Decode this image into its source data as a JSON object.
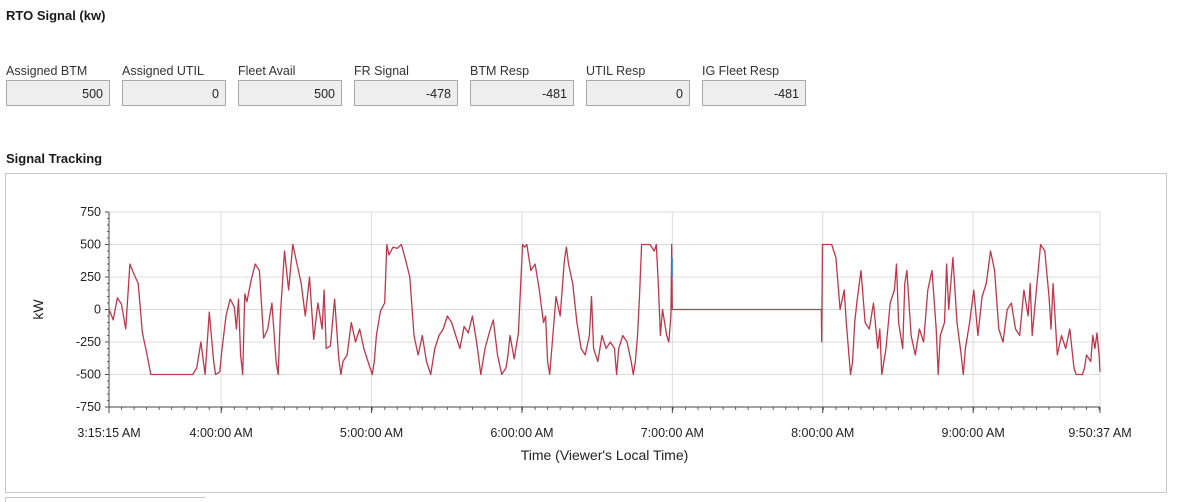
{
  "header": {
    "title": "RTO Signal (kw)"
  },
  "fields": [
    {
      "label": "Assigned BTM",
      "value": "500"
    },
    {
      "label": "Assigned UTIL",
      "value": "0"
    },
    {
      "label": "Fleet Avail",
      "value": "500"
    },
    {
      "label": "FR Signal",
      "value": "-478"
    },
    {
      "label": "BTM Resp",
      "value": "-481"
    },
    {
      "label": "UTIL Resp",
      "value": "0"
    },
    {
      "label": "IG Fleet Resp",
      "value": "-481"
    }
  ],
  "tracking": {
    "title": "Signal Tracking"
  },
  "chart_data": {
    "type": "line",
    "title": "",
    "xlabel": "Time (Viewer's Local Time)",
    "ylabel": "kW",
    "x_tick_labels": [
      "3:15:15 AM",
      "4:00:00 AM",
      "5:00:00 AM",
      "6:00:00 AM",
      "7:00:00 AM",
      "8:00:00 AM",
      "9:00:00 AM",
      "9:50:37 AM"
    ],
    "x_ticks_seconds": [
      0,
      2685,
      6285,
      9885,
      13485,
      17085,
      20685,
      23722
    ],
    "y_ticks": [
      -750,
      -500,
      -250,
      0,
      250,
      500,
      750
    ],
    "ylim": [
      -750,
      750
    ],
    "grid": true,
    "colors": {
      "line": "#c0364a",
      "blip": "#4f8fd6"
    },
    "series": [
      {
        "values": [
          [
            0,
            0
          ],
          [
            100,
            -80
          ],
          [
            200,
            90
          ],
          [
            300,
            40
          ],
          [
            400,
            -150
          ],
          [
            500,
            350
          ],
          [
            600,
            270
          ],
          [
            700,
            200
          ],
          [
            800,
            -180
          ],
          [
            900,
            -330
          ],
          [
            1000,
            -500
          ],
          [
            1150,
            -500
          ],
          [
            1300,
            -500
          ],
          [
            1450,
            -500
          ],
          [
            1600,
            -500
          ],
          [
            1700,
            -500
          ],
          [
            1800,
            -500
          ],
          [
            1900,
            -500
          ],
          [
            2000,
            -500
          ],
          [
            2100,
            -450
          ],
          [
            2200,
            -250
          ],
          [
            2300,
            -500
          ],
          [
            2400,
            -20
          ],
          [
            2500,
            -380
          ],
          [
            2550,
            -500
          ],
          [
            2650,
            -480
          ],
          [
            2700,
            -320
          ],
          [
            2800,
            -50
          ],
          [
            2900,
            80
          ],
          [
            3000,
            20
          ],
          [
            3050,
            -150
          ],
          [
            3100,
            80
          ],
          [
            3150,
            -350
          ],
          [
            3200,
            -500
          ],
          [
            3250,
            120
          ],
          [
            3300,
            60
          ],
          [
            3400,
            220
          ],
          [
            3500,
            350
          ],
          [
            3600,
            300
          ],
          [
            3700,
            -220
          ],
          [
            3800,
            -150
          ],
          [
            3900,
            50
          ],
          [
            4000,
            -400
          ],
          [
            4050,
            -500
          ],
          [
            4100,
            -50
          ],
          [
            4150,
            200
          ],
          [
            4200,
            450
          ],
          [
            4300,
            150
          ],
          [
            4400,
            500
          ],
          [
            4500,
            350
          ],
          [
            4600,
            200
          ],
          [
            4700,
            -50
          ],
          [
            4800,
            250
          ],
          [
            4900,
            -230
          ],
          [
            5000,
            50
          ],
          [
            5100,
            -150
          ],
          [
            5150,
            150
          ],
          [
            5200,
            -300
          ],
          [
            5300,
            -280
          ],
          [
            5400,
            80
          ],
          [
            5500,
            -380
          ],
          [
            5550,
            -500
          ],
          [
            5600,
            -400
          ],
          [
            5700,
            -350
          ],
          [
            5800,
            -100
          ],
          [
            5900,
            -250
          ],
          [
            6000,
            -150
          ],
          [
            6100,
            -300
          ],
          [
            6200,
            -400
          ],
          [
            6300,
            -500
          ],
          [
            6350,
            -400
          ],
          [
            6400,
            -200
          ],
          [
            6500,
            -10
          ],
          [
            6600,
            50
          ],
          [
            6650,
            500
          ],
          [
            6700,
            420
          ],
          [
            6800,
            480
          ],
          [
            6900,
            470
          ],
          [
            7000,
            500
          ],
          [
            7100,
            380
          ],
          [
            7200,
            250
          ],
          [
            7300,
            -200
          ],
          [
            7400,
            -350
          ],
          [
            7500,
            -200
          ],
          [
            7600,
            -400
          ],
          [
            7700,
            -500
          ],
          [
            7800,
            -300
          ],
          [
            7900,
            -200
          ],
          [
            8000,
            -150
          ],
          [
            8100,
            -50
          ],
          [
            8200,
            -100
          ],
          [
            8300,
            -200
          ],
          [
            8400,
            -300
          ],
          [
            8500,
            -130
          ],
          [
            8600,
            -180
          ],
          [
            8700,
            -50
          ],
          [
            8800,
            -250
          ],
          [
            8900,
            -500
          ],
          [
            9000,
            -300
          ],
          [
            9100,
            -180
          ],
          [
            9200,
            -80
          ],
          [
            9300,
            -350
          ],
          [
            9400,
            -500
          ],
          [
            9500,
            -450
          ],
          [
            9550,
            -350
          ],
          [
            9600,
            -200
          ],
          [
            9700,
            -380
          ],
          [
            9800,
            -180
          ],
          [
            9900,
            500
          ],
          [
            9950,
            480
          ],
          [
            10000,
            500
          ],
          [
            10100,
            300
          ],
          [
            10200,
            350
          ],
          [
            10300,
            150
          ],
          [
            10400,
            -100
          ],
          [
            10450,
            -50
          ],
          [
            10500,
            -400
          ],
          [
            10550,
            -500
          ],
          [
            10600,
            -300
          ],
          [
            10650,
            -100
          ],
          [
            10700,
            100
          ],
          [
            10800,
            -50
          ],
          [
            10900,
            380
          ],
          [
            10950,
            480
          ],
          [
            11000,
            350
          ],
          [
            11100,
            200
          ],
          [
            11200,
            -100
          ],
          [
            11300,
            -300
          ],
          [
            11400,
            -350
          ],
          [
            11500,
            -200
          ],
          [
            11550,
            100
          ],
          [
            11600,
            -300
          ],
          [
            11700,
            -400
          ],
          [
            11800,
            -200
          ],
          [
            11900,
            -300
          ],
          [
            12000,
            -250
          ],
          [
            12100,
            -300
          ],
          [
            12150,
            -500
          ],
          [
            12200,
            -300
          ],
          [
            12300,
            -200
          ],
          [
            12400,
            -250
          ],
          [
            12500,
            -400
          ],
          [
            12550,
            -500
          ],
          [
            12600,
            -400
          ],
          [
            12650,
            -200
          ],
          [
            12700,
            100
          ],
          [
            12750,
            500
          ],
          [
            12850,
            500
          ],
          [
            12950,
            500
          ],
          [
            13050,
            450
          ],
          [
            13100,
            500
          ],
          [
            13150,
            200
          ],
          [
            13200,
            -200
          ],
          [
            13250,
            0
          ],
          [
            13300,
            -100
          ],
          [
            13350,
            -200
          ],
          [
            13400,
            -250
          ],
          [
            13450,
            -50
          ],
          [
            13470,
            500
          ],
          [
            13485,
            0
          ],
          [
            13600,
            0
          ],
          [
            14000,
            0
          ],
          [
            15000,
            0
          ],
          [
            16000,
            0
          ],
          [
            16800,
            0
          ],
          [
            17050,
            0
          ],
          [
            17060,
            -250
          ],
          [
            17080,
            500
          ],
          [
            17150,
            500
          ],
          [
            17300,
            500
          ],
          [
            17400,
            400
          ],
          [
            17450,
            200
          ],
          [
            17500,
            0
          ],
          [
            17600,
            150
          ],
          [
            17650,
            -100
          ],
          [
            17700,
            -300
          ],
          [
            17750,
            -500
          ],
          [
            17800,
            -400
          ],
          [
            17850,
            -100
          ],
          [
            17900,
            50
          ],
          [
            18000,
            300
          ],
          [
            18100,
            -100
          ],
          [
            18200,
            -150
          ],
          [
            18300,
            50
          ],
          [
            18400,
            -300
          ],
          [
            18450,
            -150
          ],
          [
            18500,
            -500
          ],
          [
            18600,
            -300
          ],
          [
            18700,
            50
          ],
          [
            18800,
            150
          ],
          [
            18850,
            350
          ],
          [
            18900,
            -100
          ],
          [
            19000,
            -300
          ],
          [
            19050,
            200
          ],
          [
            19100,
            300
          ],
          [
            19200,
            -200
          ],
          [
            19300,
            -350
          ],
          [
            19400,
            -150
          ],
          [
            19500,
            -250
          ],
          [
            19600,
            150
          ],
          [
            19700,
            300
          ],
          [
            19800,
            -150
          ],
          [
            19850,
            -500
          ],
          [
            19900,
            -200
          ],
          [
            20000,
            -100
          ],
          [
            20050,
            350
          ],
          [
            20100,
            0
          ],
          [
            20200,
            400
          ],
          [
            20300,
            -100
          ],
          [
            20400,
            -350
          ],
          [
            20450,
            -500
          ],
          [
            20500,
            -300
          ],
          [
            20600,
            -100
          ],
          [
            20700,
            150
          ],
          [
            20800,
            -200
          ],
          [
            20900,
            100
          ],
          [
            21000,
            200
          ],
          [
            21100,
            450
          ],
          [
            21200,
            300
          ],
          [
            21300,
            -150
          ],
          [
            21400,
            -250
          ],
          [
            21500,
            0
          ],
          [
            21600,
            50
          ],
          [
            21700,
            -150
          ],
          [
            21800,
            -200
          ],
          [
            21900,
            150
          ],
          [
            22000,
            -50
          ],
          [
            22050,
            200
          ],
          [
            22100,
            -200
          ],
          [
            22200,
            150
          ],
          [
            22300,
            500
          ],
          [
            22400,
            450
          ],
          [
            22500,
            100
          ],
          [
            22550,
            -150
          ],
          [
            22600,
            200
          ],
          [
            22700,
            -350
          ],
          [
            22800,
            -200
          ],
          [
            22900,
            -300
          ],
          [
            23000,
            -150
          ],
          [
            23100,
            -450
          ],
          [
            23150,
            -500
          ],
          [
            23200,
            -500
          ],
          [
            23300,
            -500
          ],
          [
            23350,
            -450
          ],
          [
            23400,
            -350
          ],
          [
            23500,
            -400
          ],
          [
            23550,
            -200
          ],
          [
            23600,
            -300
          ],
          [
            23650,
            -180
          ],
          [
            23700,
            -350
          ],
          [
            23722,
            -480
          ]
        ]
      }
    ]
  }
}
